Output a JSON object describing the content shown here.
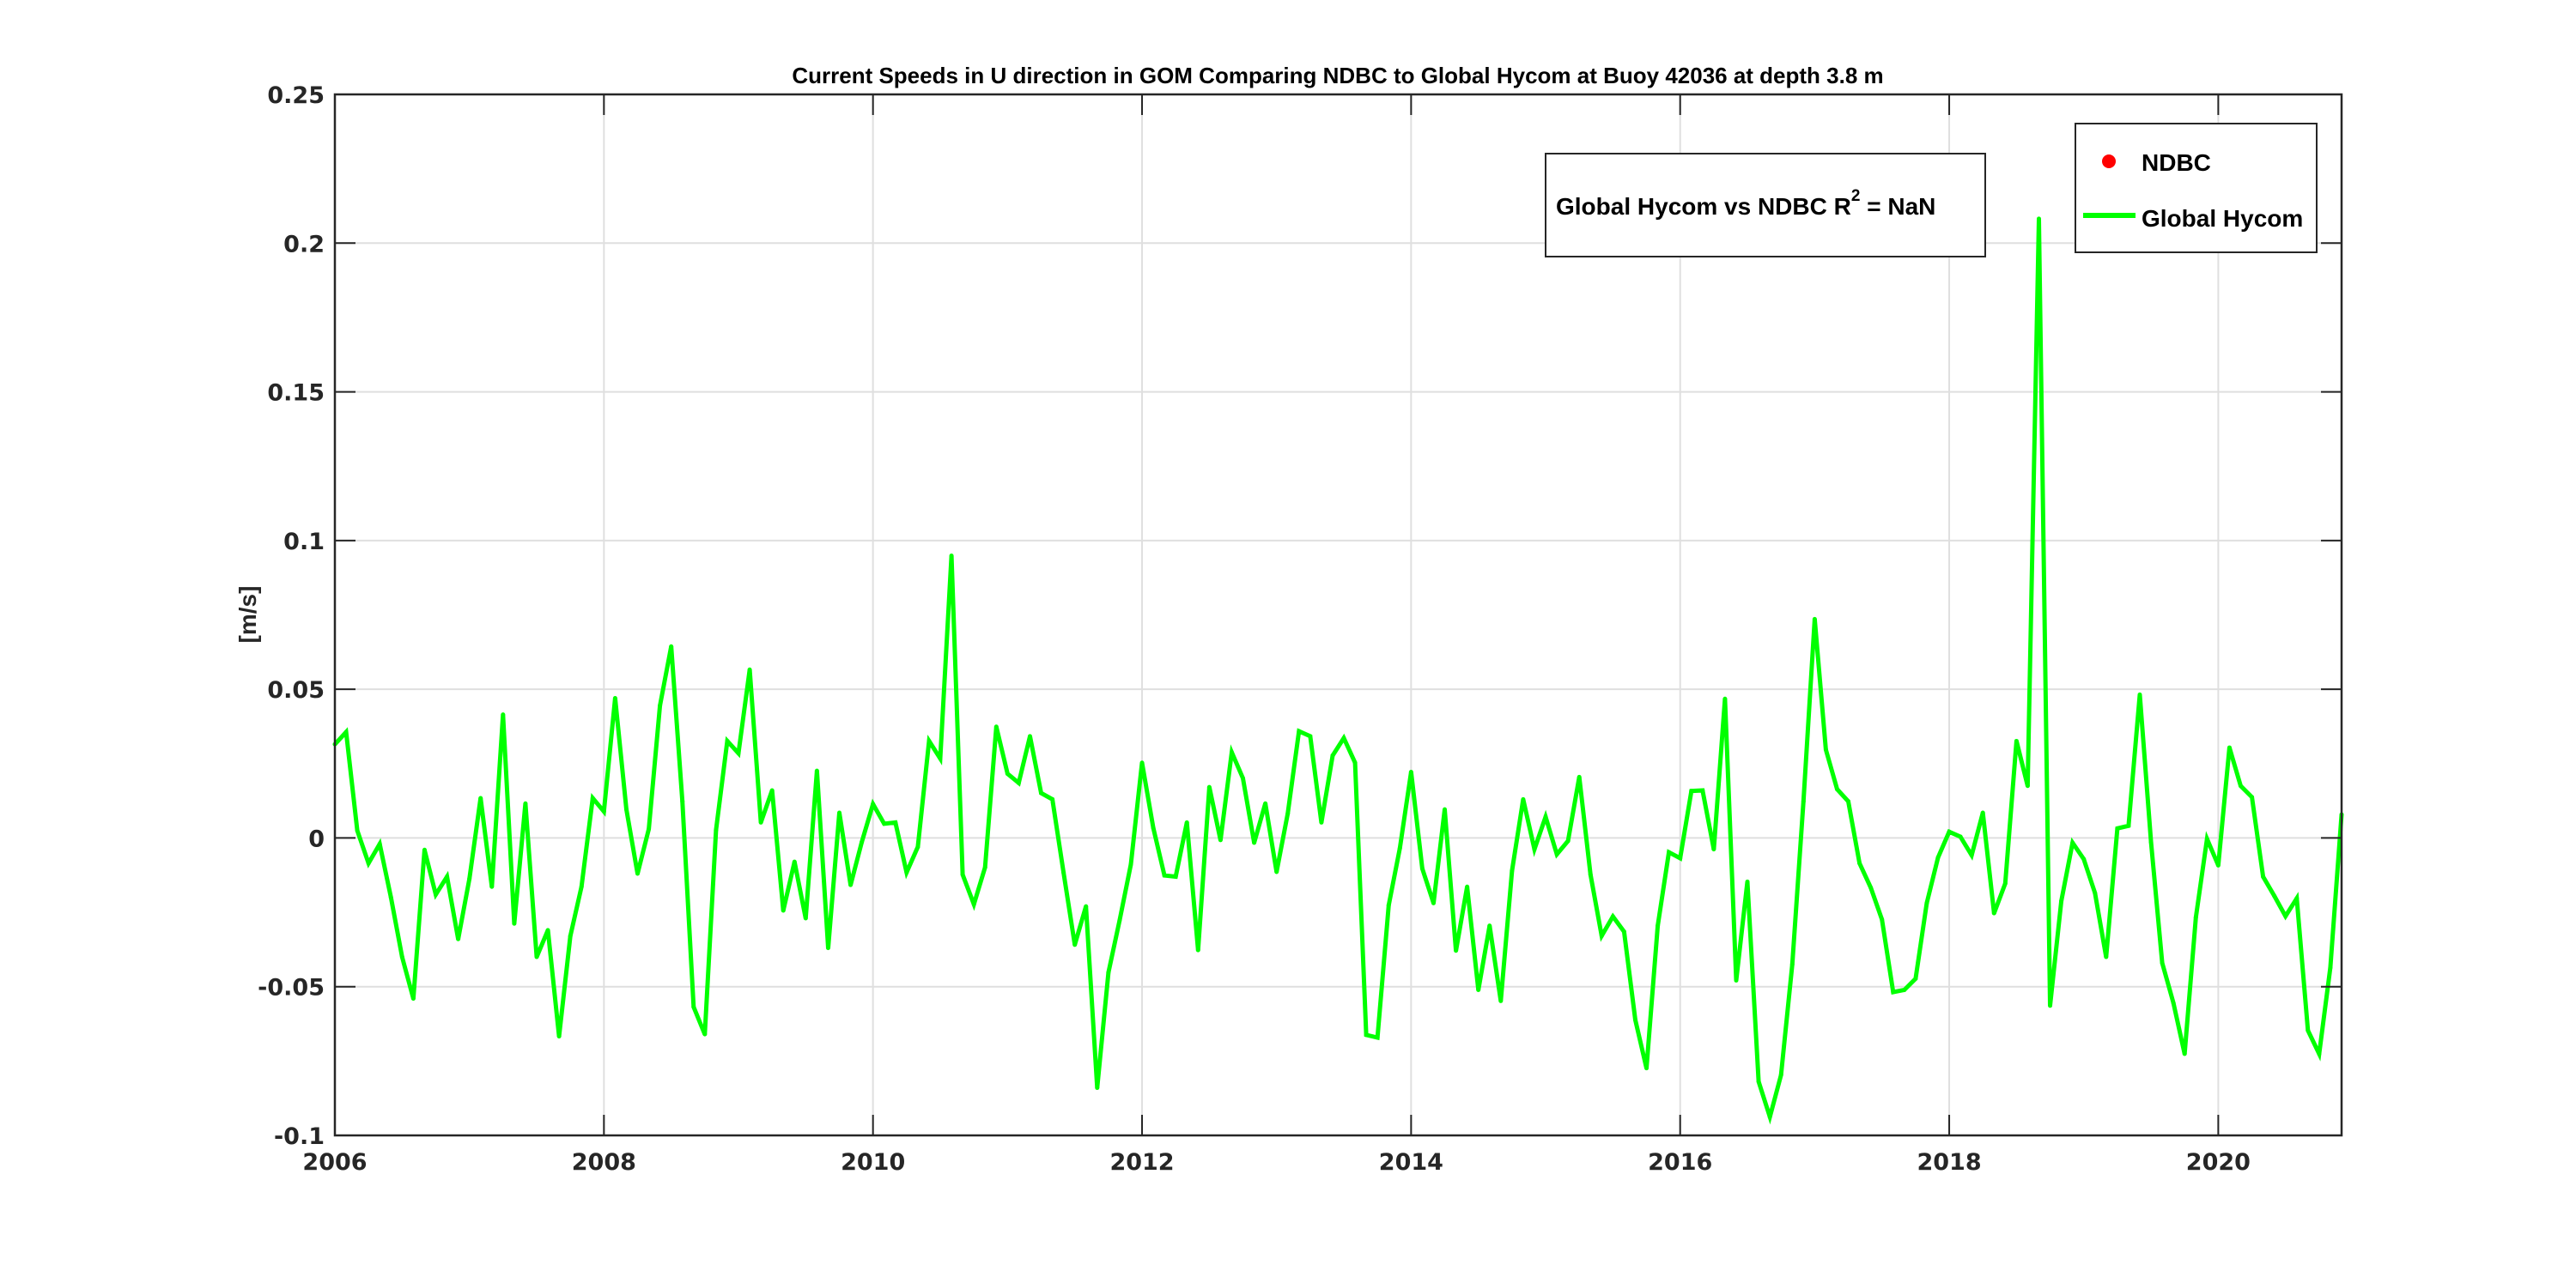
{
  "chart_data": {
    "type": "line",
    "title": "Current Speeds in U direction in GOM Comparing NDBC to Global Hycom at Buoy  42036  at depth  3.8 m",
    "xlabel": "",
    "ylabel": "[m/s]",
    "xlim": [
      "2006-01",
      "2020-12"
    ],
    "ylim": [
      -0.1,
      0.25
    ],
    "xticks": [
      "2006",
      "2008",
      "2010",
      "2012",
      "2014",
      "2016",
      "2018",
      "2020"
    ],
    "yticks": [
      "-0.1",
      "-0.05",
      "0",
      "0.05",
      "0.1",
      "0.15",
      "0.2",
      "0.25"
    ],
    "grid": true,
    "legend_placement": "top-right",
    "annotation": {
      "text": "Global Hycom vs NDBC R",
      "sup": "2",
      "suffix": " = NaN"
    },
    "series": [
      {
        "name": "NDBC",
        "color": "#ff0000",
        "marker": "dot",
        "values": []
      },
      {
        "name": "Global Hycom",
        "color": "#00ff00",
        "marker": "line",
        "start": "2006-01",
        "step": "month",
        "values": [
          0.0315,
          0.0356,
          0.0025,
          -0.0085,
          -0.002,
          -0.02,
          -0.04,
          -0.054,
          -0.004,
          -0.019,
          -0.013,
          -0.034,
          -0.0137,
          0.0134,
          -0.0164,
          0.0415,
          -0.0288,
          0.0116,
          -0.04,
          -0.031,
          -0.0667,
          -0.033,
          -0.0164,
          0.0134,
          0.0089,
          0.047,
          0.0096,
          -0.012,
          0.003,
          0.0445,
          0.0644,
          0.0123,
          -0.0568,
          -0.066,
          0.0027,
          0.0326,
          0.0285,
          0.0566,
          0.0052,
          0.016,
          -0.0244,
          -0.008,
          -0.027,
          0.0226,
          -0.037,
          0.0085,
          -0.0158,
          -0.0014,
          0.0114,
          0.0048,
          0.0052,
          -0.0116,
          -0.003,
          0.0326,
          0.0267,
          0.0949,
          -0.0123,
          -0.0223,
          -0.0099,
          0.0374,
          0.0216,
          0.0185,
          0.0342,
          0.0151,
          0.013,
          -0.0116,
          -0.0359,
          -0.023,
          -0.084,
          -0.0452,
          -0.0277,
          -0.0089,
          0.0253,
          0.0034,
          -0.0126,
          -0.013,
          0.0052,
          -0.0377,
          0.0171,
          -0.0007,
          0.0288,
          0.0201,
          -0.0016,
          0.0116,
          -0.0114,
          0.0082,
          0.0359,
          0.0342,
          0.0052,
          0.0277,
          0.0336,
          0.0253,
          -0.0662,
          -0.0671,
          -0.0226,
          -0.0034,
          0.0222,
          -0.0103,
          -0.0219,
          0.0096,
          -0.0379,
          -0.0164,
          -0.0511,
          -0.0295,
          -0.0548,
          -0.011,
          0.013,
          -0.0038,
          0.0071,
          -0.0055,
          -0.001,
          0.0205,
          -0.0123,
          -0.0329,
          -0.0264,
          -0.0315,
          -0.0612,
          -0.0774,
          -0.0295,
          -0.0048,
          -0.0068,
          0.0158,
          0.016,
          -0.0038,
          0.0468,
          -0.0479,
          -0.0147,
          -0.0819,
          -0.0938,
          -0.0797,
          -0.0425,
          0.0123,
          0.0736,
          0.0297,
          0.0164,
          0.0123,
          -0.0085,
          -0.0167,
          -0.0274,
          -0.0518,
          -0.0511,
          -0.0473,
          -0.0219,
          -0.0066,
          0.0021,
          0.0004,
          -0.0058,
          0.0085,
          -0.0253,
          -0.0153,
          0.0326,
          0.0175,
          0.2082,
          -0.0564,
          -0.0212,
          -0.0016,
          -0.0071,
          -0.0185,
          -0.04,
          0.0032,
          0.0041,
          0.0482,
          -0.0014,
          -0.042,
          -0.0555,
          -0.0726,
          -0.0267,
          -0.0003,
          -0.0092,
          0.0304,
          0.0175,
          0.0137,
          -0.013,
          -0.0195,
          -0.0263,
          -0.0203,
          -0.0647,
          -0.0726,
          -0.0436,
          0.0079
        ]
      }
    ]
  }
}
